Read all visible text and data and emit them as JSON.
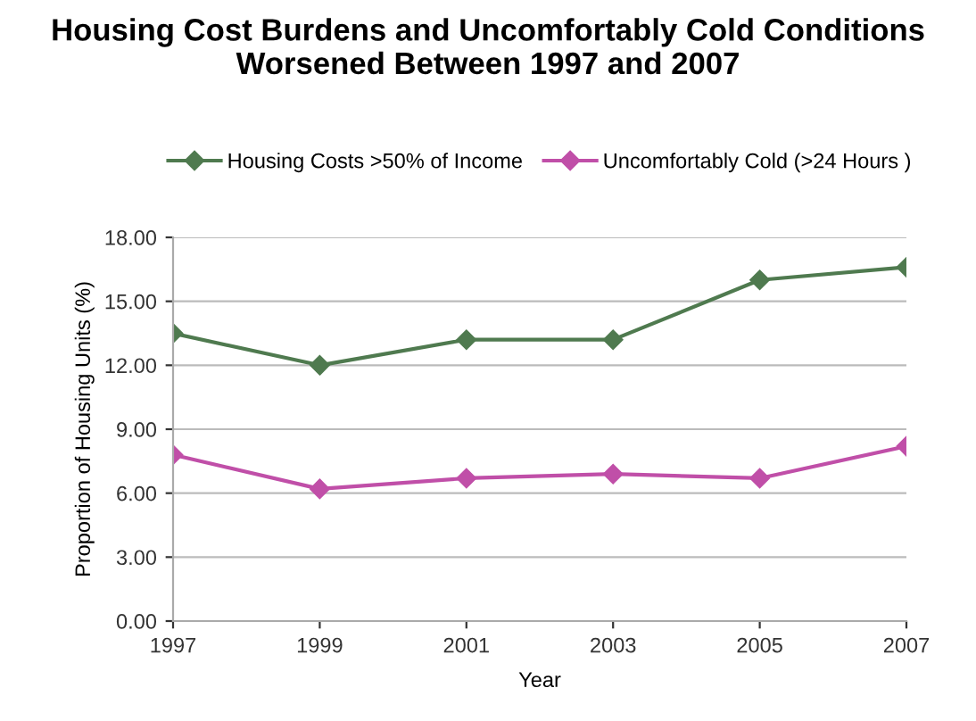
{
  "chart_data": {
    "type": "line",
    "title": "Housing Cost Burdens and Uncomfortably Cold Conditions\nWorsened Between 1997 and 2007",
    "xlabel": "Year",
    "ylabel": "Proportion of Housing Units (%)",
    "categories": [
      "1997",
      "1999",
      "2001",
      "2003",
      "2005",
      "2007"
    ],
    "series": [
      {
        "name": "Housing Costs >50% of Income",
        "color": "#4f7a4f",
        "values": [
          13.5,
          12.0,
          13.2,
          13.2,
          16.0,
          16.6
        ]
      },
      {
        "name": "Uncomfortably Cold (>24 Hours )",
        "color": "#c04fa8",
        "values": [
          7.8,
          6.2,
          6.7,
          6.9,
          6.7,
          8.2
        ]
      }
    ],
    "ylim": [
      0,
      18
    ],
    "yticks": [
      {
        "value": 0,
        "label": "0.00"
      },
      {
        "value": 3,
        "label": "3.00"
      },
      {
        "value": 6,
        "label": "6.00"
      },
      {
        "value": 9,
        "label": "9.00"
      },
      {
        "value": 12,
        "label": "12.00"
      },
      {
        "value": 15,
        "label": "15.00"
      },
      {
        "value": 18,
        "label": "18.00"
      }
    ],
    "grid": "y",
    "legend": "top",
    "marker": "diamond",
    "line_style": "solid"
  }
}
